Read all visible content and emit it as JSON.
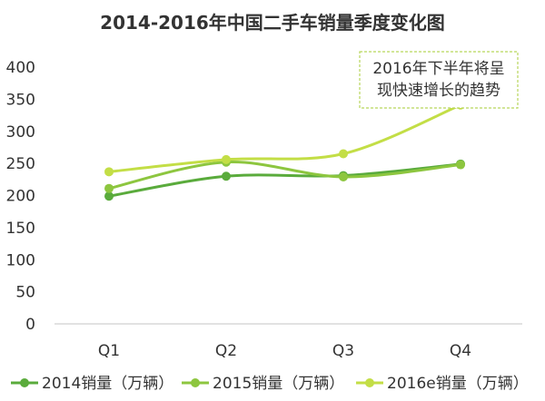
{
  "colors": {
    "s2014": "#5aab3c",
    "s2015": "#8dc63f",
    "s2016": "#c3de46",
    "annotation_border": "#b8d65a",
    "axis": "#d9d9d9"
  },
  "chart_data": {
    "type": "line",
    "title": "2014-2016年中国二手车销量季度变化图",
    "categories": [
      "Q1",
      "Q2",
      "Q3",
      "Q4"
    ],
    "ylim": [
      0,
      400
    ],
    "yticks": [
      0,
      50,
      100,
      150,
      200,
      250,
      300,
      350,
      400
    ],
    "grid": false,
    "legend_position": "bottom",
    "series": [
      {
        "name": "2014销量（万辆）",
        "color_key": "s2014",
        "values": [
          199,
          230,
          231,
          249
        ]
      },
      {
        "name": "2015销量（万辆）",
        "color_key": "s2015",
        "values": [
          211,
          252,
          229,
          248
        ]
      },
      {
        "name": "2016e销量（万辆）",
        "color_key": "s2016",
        "values": [
          237,
          256,
          265,
          341
        ]
      }
    ],
    "annotation": {
      "lines": [
        "2016年下半年将呈",
        "现快速增长的趋势"
      ]
    }
  }
}
